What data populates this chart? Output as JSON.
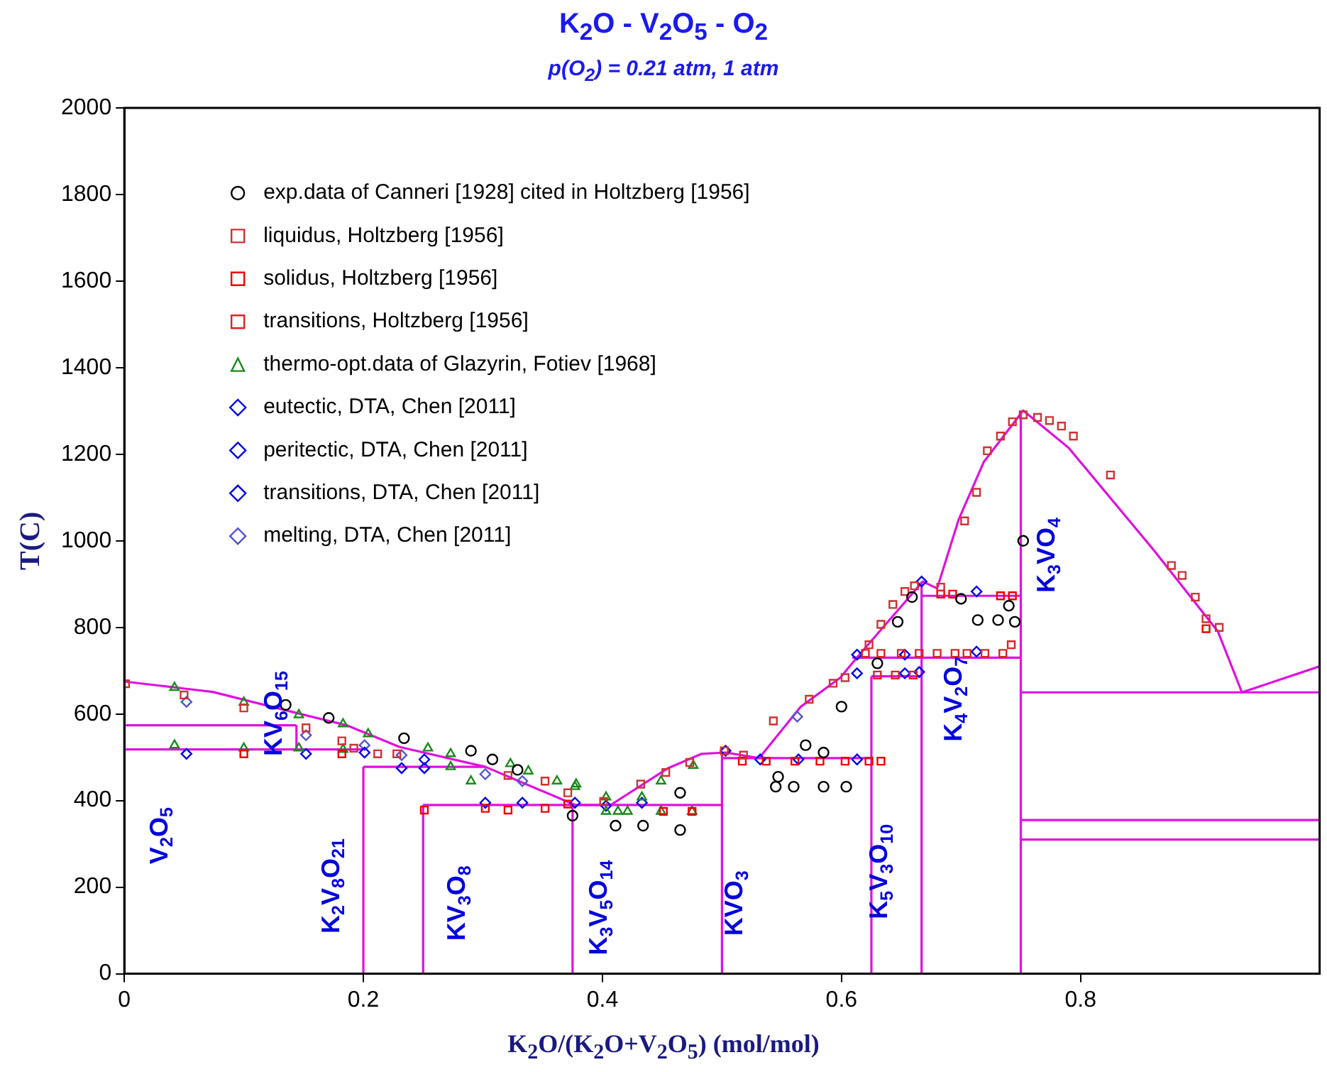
{
  "chart_data": {
    "type": "scatter",
    "title": "K$_{2}$O - V$_{2}$O$_{5}$ - O$_{2}$",
    "subtitle": "p(O$_{2}$) = 0.21 atm, 1 atm",
    "xlabel": "K$_{2}$O/(K$_{2}$O+V$_{2}$O$_{5}$) (mol/mol)",
    "ylabel": "T(C)",
    "xlim": [
      0,
      1
    ],
    "xticks": [
      0,
      0.2,
      0.4,
      0.6,
      0.8
    ],
    "ylim": [
      0,
      2000
    ],
    "yticks": [
      0,
      200,
      400,
      600,
      800,
      1000,
      1200,
      1400,
      1600,
      1800,
      2000
    ],
    "grid": false,
    "legend": "top left",
    "annotations": [
      "V$_{2}$O$_{5}$",
      "KV$_{6}$O$_{15}$",
      "K$_{2}$V$_{8}$O$_{21}$",
      "KV$_{3}$O$_{8}$",
      "K$_{3}$V$_{5}$O$_{14}$",
      "KVO$_{3}$",
      "K$_{5}$V$_{3}$O$_{10}$",
      "K$_{4}$V$_{2}$O$_{7}$",
      "K$_{3}$VO$_{4}$"
    ],
    "series": [
      {
        "name": "exp.data of Canneri [1928] cited in Holtzberg [1956]",
        "color": "#000000",
        "marker": "circle",
        "x": [
          0.135,
          0.171,
          0.234,
          0.29,
          0.308,
          0.329,
          0.375,
          0.465,
          0.411,
          0.434,
          0.465,
          0.547,
          0.545,
          0.57,
          0.585,
          0.585,
          0.604,
          0.6,
          0.63,
          0.647,
          0.659,
          0.7,
          0.714,
          0.745,
          0.74,
          0.56,
          0.731,
          0.752
        ],
        "values": [
          621,
          591,
          544,
          515,
          495,
          471,
          365,
          418,
          342,
          342,
          332,
          455,
          432,
          528,
          511,
          432,
          432,
          617,
          717,
          813,
          870,
          866,
          817,
          813,
          850,
          432,
          817,
          1000
        ]
      },
      {
        "name": "liquidus, Holtzberg [1956]",
        "color": "#cc3333",
        "marker": "square",
        "x": [
          0.001,
          0.05,
          0.1,
          0.152,
          0.182,
          0.192,
          0.212,
          0.228,
          0.321,
          0.352,
          0.371,
          0.401,
          0.432,
          0.453,
          0.473,
          0.502,
          0.518,
          0.543,
          0.573,
          0.593,
          0.603,
          0.623,
          0.633,
          0.643,
          0.653,
          0.661,
          0.683,
          0.703,
          0.713,
          0.722,
          0.733,
          0.743,
          0.752,
          0.764,
          0.774,
          0.784,
          0.794,
          0.825,
          0.876,
          0.885,
          0.896,
          0.905,
          0.916
        ],
        "values": [
          670,
          644,
          614,
          568,
          538,
          521,
          508,
          508,
          458,
          445,
          418,
          398,
          438,
          465,
          488,
          515,
          505,
          584,
          634,
          671,
          684,
          760,
          807,
          853,
          883,
          896,
          893,
          1046,
          1112,
          1208,
          1242,
          1275,
          1291,
          1285,
          1278,
          1265,
          1242,
          1152,
          943,
          920,
          870,
          820,
          800
        ]
      },
      {
        "name": "solidus, Holtzberg [1956]",
        "color": "#ee0000",
        "marker": "square",
        "x": [
          0.1,
          0.182,
          0.251,
          0.302,
          0.321,
          0.352,
          0.371,
          0.451,
          0.475,
          0.517,
          0.537,
          0.561,
          0.582,
          0.603,
          0.623,
          0.633,
          0.683,
          0.693,
          0.733,
          0.743,
          0.905
        ],
        "values": [
          508,
          508,
          378,
          382,
          378,
          382,
          392,
          375,
          375,
          491,
          491,
          491,
          491,
          491,
          491,
          491,
          877,
          877,
          873,
          873,
          797
        ]
      },
      {
        "name": "transitions, Holtzberg [1956]",
        "color": "#dd2222",
        "marker": "square",
        "x": [
          0.62,
          0.633,
          0.65,
          0.665,
          0.68,
          0.695,
          0.705,
          0.72,
          0.735,
          0.63,
          0.645,
          0.66,
          0.742
        ],
        "values": [
          740,
          740,
          740,
          740,
          740,
          740,
          740,
          740,
          740,
          690,
          690,
          690,
          760
        ]
      },
      {
        "name": "thermo-opt.data of Glazyrin, Fotiev [1968]",
        "color": "#1a8a1a",
        "marker": "triangle",
        "x": [
          0.042,
          0.1,
          0.146,
          0.183,
          0.204,
          0.042,
          0.1,
          0.146,
          0.183,
          0.254,
          0.273,
          0.273,
          0.29,
          0.323,
          0.338,
          0.362,
          0.378,
          0.377,
          0.403,
          0.403,
          0.413,
          0.421,
          0.433,
          0.449,
          0.449,
          0.475,
          0.476
        ],
        "values": [
          661,
          627,
          598,
          577,
          554,
          528,
          521,
          521,
          518,
          521,
          508,
          478,
          445,
          485,
          468,
          445,
          438,
          432,
          408,
          375,
          375,
          375,
          408,
          375,
          445,
          375,
          481
        ]
      },
      {
        "name": "eutectic, DTA, Chen [2011]",
        "color": "#0000ee",
        "marker": "diamond",
        "x": [
          0.302,
          0.333,
          0.403,
          0.433,
          0.532,
          0.564,
          0.613,
          0.613,
          0.653,
          0.665,
          0.713
        ],
        "values": [
          395,
          395,
          388,
          395,
          495,
          495,
          495,
          694,
          694,
          697,
          883
        ]
      },
      {
        "name": "peritectic, DTA, Chen [2011]",
        "color": "#0000ee",
        "marker": "diamond",
        "x": [
          0.232,
          0.251,
          0.377,
          0.503,
          0.613,
          0.653,
          0.667
        ],
        "values": [
          475,
          475,
          395,
          515,
          737,
          737,
          906
        ]
      },
      {
        "name": "transitions, DTA, Chen [2011]",
        "color": "#0000ee",
        "marker": "diamond",
        "x": [
          0.052,
          0.152,
          0.201,
          0.251,
          0.713
        ],
        "values": [
          508,
          508,
          511,
          495,
          744
        ]
      },
      {
        "name": "melting, DTA, Chen [2011]",
        "color": "#5555cc",
        "marker": "diamond",
        "x": [
          0.052,
          0.152,
          0.201,
          0.232,
          0.302,
          0.333,
          0.563
        ],
        "values": [
          628,
          551,
          528,
          505,
          461,
          445,
          594
        ]
      },
      {
        "type": "line",
        "color": "#e010e0",
        "marker": "none",
        "x": [
          0,
          0.074,
          0.146,
          0.186,
          0.23,
          0.302,
          0.377,
          0.407,
          0.455,
          0.483,
          0.503,
          0.531,
          0.566,
          0.599,
          0.614,
          0.668,
          0.68,
          0.698,
          0.719,
          0.752,
          0.79,
          0.862,
          0.915,
          0.935,
          1.0
        ],
        "values": [
          675,
          651,
          601,
          574,
          524,
          478,
          390,
          390,
          475,
          508,
          511,
          498,
          617,
          684,
          734,
          906,
          890,
          1049,
          1182,
          1301,
          1215,
          976,
          790,
          650,
          710
        ]
      },
      {
        "type": "line",
        "color": "#e010e0",
        "marker": "none",
        "x": [
          0,
          0.144
        ],
        "values": [
          574,
          574
        ]
      },
      {
        "type": "line",
        "color": "#e010e0",
        "marker": "none",
        "x": [
          0,
          0.2
        ],
        "values": [
          518,
          518
        ]
      },
      {
        "type": "line",
        "color": "#e010e0",
        "marker": "none",
        "x": [
          0.144,
          0.144
        ],
        "values": [
          518,
          574
        ]
      },
      {
        "type": "line",
        "color": "#e010e0",
        "marker": "none",
        "x": [
          0.2,
          0.302
        ],
        "values": [
          478,
          478
        ]
      },
      {
        "type": "line",
        "color": "#e010e0",
        "marker": "none",
        "x": [
          0.2,
          0.2
        ],
        "values": [
          0,
          478
        ]
      },
      {
        "type": "line",
        "color": "#e010e0",
        "marker": "none",
        "x": [
          0.25,
          0.25
        ],
        "values": [
          0,
          390
        ]
      },
      {
        "type": "line",
        "color": "#e010e0",
        "marker": "none",
        "x": [
          0.25,
          0.377
        ],
        "values": [
          390,
          390
        ]
      },
      {
        "type": "line",
        "color": "#e010e0",
        "marker": "none",
        "x": [
          0.375,
          0.375
        ],
        "values": [
          0,
          390
        ]
      },
      {
        "type": "line",
        "color": "#e010e0",
        "marker": "none",
        "x": [
          0.375,
          0.5
        ],
        "values": [
          390,
          390
        ]
      },
      {
        "type": "line",
        "color": "#e010e0",
        "marker": "none",
        "x": [
          0.5,
          0.5
        ],
        "values": [
          0,
          511
        ]
      },
      {
        "type": "line",
        "color": "#e010e0",
        "marker": "none",
        "x": [
          0.5,
          0.626
        ],
        "values": [
          498,
          498
        ]
      },
      {
        "type": "line",
        "color": "#e010e0",
        "marker": "none",
        "x": [
          0.625,
          0.625
        ],
        "values": [
          0,
          687
        ]
      },
      {
        "type": "line",
        "color": "#e010e0",
        "marker": "none",
        "x": [
          0.625,
          0.667
        ],
        "values": [
          687,
          687
        ]
      },
      {
        "type": "line",
        "color": "#e010e0",
        "marker": "none",
        "x": [
          0.609,
          0.75
        ],
        "values": [
          730,
          730
        ]
      },
      {
        "type": "line",
        "color": "#e010e0",
        "marker": "none",
        "x": [
          0.667,
          0.667
        ],
        "values": [
          0,
          906
        ]
      },
      {
        "type": "line",
        "color": "#e010e0",
        "marker": "none",
        "x": [
          0.667,
          0.75
        ],
        "values": [
          873,
          873
        ]
      },
      {
        "type": "line",
        "color": "#e010e0",
        "marker": "none",
        "x": [
          0.75,
          0.75
        ],
        "values": [
          0,
          1301
        ]
      },
      {
        "type": "line",
        "color": "#e010e0",
        "marker": "none",
        "x": [
          0.75,
          1.0
        ],
        "values": [
          650,
          650
        ]
      },
      {
        "type": "line",
        "color": "#e010e0",
        "marker": "none",
        "x": [
          0.75,
          1.0
        ],
        "values": [
          355,
          355
        ]
      },
      {
        "type": "line",
        "color": "#e010e0",
        "marker": "none",
        "x": [
          0.75,
          1.0
        ],
        "values": [
          310,
          310
        ]
      }
    ]
  }
}
